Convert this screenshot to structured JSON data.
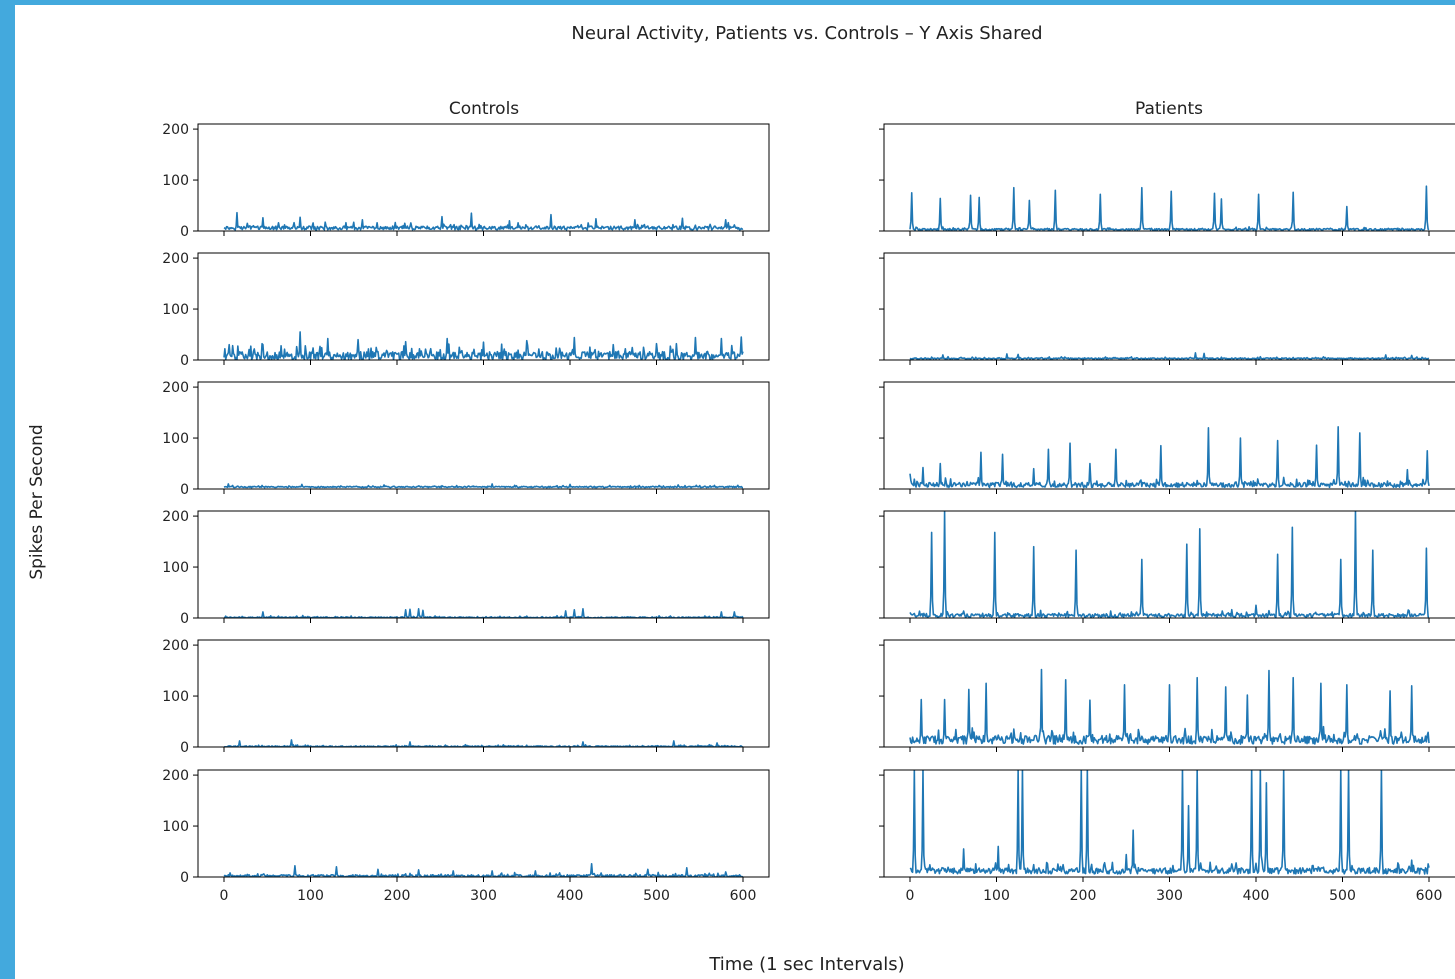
{
  "figure": {
    "title": "Neural Activity, Patients vs. Controls – Y Axis Shared",
    "xlabel": "Time (1 sec Intervals)",
    "ylabel": "Spikes Per Second"
  },
  "colors": {
    "line": "#1f77b4",
    "axes": "#000000",
    "background": "#ffffff"
  },
  "chart_data": {
    "type": "line",
    "layout": {
      "rows": 6,
      "columns": 2,
      "sharey": true
    },
    "columns": [
      {
        "title": "Controls",
        "key": "controls"
      },
      {
        "title": "Patients",
        "key": "patients"
      }
    ],
    "x_range": [
      0,
      600
    ],
    "x_step": 1,
    "ylim": [
      0,
      210
    ],
    "x_ticks": [
      0,
      100,
      200,
      300,
      400,
      500,
      600
    ],
    "y_ticks": [
      0,
      100,
      200
    ],
    "grid": false,
    "legend": "none",
    "series": [
      {
        "column": "controls",
        "row": 0,
        "baseline": 6,
        "noise": 6,
        "spikes": [
          [
            15,
            36
          ],
          [
            45,
            26
          ],
          [
            88,
            27
          ],
          [
            160,
            22
          ],
          [
            252,
            28
          ],
          [
            286,
            35
          ],
          [
            330,
            20
          ],
          [
            378,
            32
          ],
          [
            430,
            24
          ],
          [
            475,
            22
          ],
          [
            530,
            25
          ],
          [
            580,
            22
          ]
        ]
      },
      {
        "column": "controls",
        "row": 1,
        "baseline": 8,
        "noise": 14,
        "spikes": [
          [
            10,
            28
          ],
          [
            45,
            30
          ],
          [
            88,
            55
          ],
          [
            120,
            42
          ],
          [
            155,
            40
          ],
          [
            210,
            36
          ],
          [
            258,
            42
          ],
          [
            300,
            35
          ],
          [
            350,
            38
          ],
          [
            405,
            44
          ],
          [
            450,
            30
          ],
          [
            500,
            32
          ],
          [
            545,
            44
          ],
          [
            575,
            42
          ],
          [
            598,
            45
          ]
        ]
      },
      {
        "column": "controls",
        "row": 2,
        "baseline": 4,
        "noise": 2,
        "spikes": [
          [
            5,
            10
          ],
          [
            90,
            9
          ],
          [
            185,
            8
          ],
          [
            310,
            10
          ],
          [
            400,
            9
          ],
          [
            525,
            8
          ]
        ]
      },
      {
        "column": "controls",
        "row": 3,
        "baseline": 1,
        "noise": 2,
        "spikes": [
          [
            45,
            12
          ],
          [
            210,
            16
          ],
          [
            215,
            17
          ],
          [
            225,
            18
          ],
          [
            230,
            15
          ],
          [
            395,
            14
          ],
          [
            405,
            16
          ],
          [
            415,
            18
          ],
          [
            575,
            12
          ],
          [
            590,
            12
          ]
        ]
      },
      {
        "column": "controls",
        "row": 4,
        "baseline": 1,
        "noise": 2,
        "spikes": [
          [
            18,
            12
          ],
          [
            78,
            14
          ],
          [
            215,
            10
          ],
          [
            415,
            10
          ],
          [
            520,
            12
          ],
          [
            570,
            8
          ]
        ]
      },
      {
        "column": "controls",
        "row": 5,
        "baseline": 2,
        "noise": 4,
        "spikes": [
          [
            82,
            22
          ],
          [
            130,
            20
          ],
          [
            178,
            15
          ],
          [
            225,
            14
          ],
          [
            265,
            12
          ],
          [
            310,
            12
          ],
          [
            360,
            12
          ],
          [
            425,
            26
          ],
          [
            490,
            15
          ],
          [
            535,
            18
          ],
          [
            580,
            10
          ]
        ]
      },
      {
        "column": "patients",
        "row": 0,
        "baseline": 3,
        "noise": 3,
        "spikes": [
          [
            2,
            75
          ],
          [
            35,
            64
          ],
          [
            70,
            70
          ],
          [
            80,
            66
          ],
          [
            120,
            85
          ],
          [
            138,
            60
          ],
          [
            168,
            80
          ],
          [
            220,
            72
          ],
          [
            268,
            85
          ],
          [
            302,
            78
          ],
          [
            352,
            74
          ],
          [
            360,
            63
          ],
          [
            403,
            72
          ],
          [
            443,
            76
          ],
          [
            505,
            48
          ],
          [
            597,
            88
          ]
        ]
      },
      {
        "column": "patients",
        "row": 1,
        "baseline": 3,
        "noise": 2,
        "spikes": [
          [
            38,
            10
          ],
          [
            112,
            12
          ],
          [
            125,
            11
          ],
          [
            330,
            14
          ],
          [
            340,
            13
          ],
          [
            550,
            10
          ],
          [
            580,
            9
          ]
        ]
      },
      {
        "column": "patients",
        "row": 2,
        "baseline": 8,
        "noise": 8,
        "spikes": [
          [
            0,
            30
          ],
          [
            15,
            42
          ],
          [
            35,
            50
          ],
          [
            82,
            72
          ],
          [
            107,
            68
          ],
          [
            143,
            40
          ],
          [
            160,
            78
          ],
          [
            185,
            90
          ],
          [
            208,
            50
          ],
          [
            238,
            78
          ],
          [
            290,
            85
          ],
          [
            345,
            120
          ],
          [
            382,
            100
          ],
          [
            425,
            95
          ],
          [
            470,
            86
          ],
          [
            495,
            122
          ],
          [
            520,
            110
          ],
          [
            575,
            38
          ],
          [
            598,
            75
          ]
        ]
      },
      {
        "column": "patients",
        "row": 3,
        "baseline": 5,
        "noise": 6,
        "spikes": [
          [
            25,
            168
          ],
          [
            40,
            210
          ],
          [
            98,
            168
          ],
          [
            143,
            140
          ],
          [
            192,
            133
          ],
          [
            268,
            115
          ],
          [
            320,
            145
          ],
          [
            335,
            175
          ],
          [
            400,
            25
          ],
          [
            425,
            125
          ],
          [
            442,
            178
          ],
          [
            498,
            115
          ],
          [
            515,
            210
          ],
          [
            535,
            133
          ],
          [
            597,
            137
          ]
        ]
      },
      {
        "column": "patients",
        "row": 4,
        "baseline": 14,
        "noise": 14,
        "spikes": [
          [
            13,
            93
          ],
          [
            40,
            93
          ],
          [
            68,
            113
          ],
          [
            88,
            125
          ],
          [
            152,
            152
          ],
          [
            180,
            132
          ],
          [
            208,
            92
          ],
          [
            248,
            122
          ],
          [
            300,
            122
          ],
          [
            332,
            136
          ],
          [
            365,
            118
          ],
          [
            390,
            102
          ],
          [
            415,
            150
          ],
          [
            443,
            136
          ],
          [
            475,
            125
          ],
          [
            505,
            122
          ],
          [
            555,
            110
          ],
          [
            580,
            120
          ]
        ]
      },
      {
        "column": "patients",
        "row": 5,
        "baseline": 12,
        "noise": 10,
        "spikes": [
          [
            5,
            210
          ],
          [
            15,
            210
          ],
          [
            62,
            55
          ],
          [
            102,
            60
          ],
          [
            125,
            210
          ],
          [
            130,
            210
          ],
          [
            198,
            210
          ],
          [
            205,
            210
          ],
          [
            250,
            44
          ],
          [
            258,
            92
          ],
          [
            315,
            210
          ],
          [
            322,
            140
          ],
          [
            332,
            210
          ],
          [
            395,
            210
          ],
          [
            405,
            210
          ],
          [
            412,
            185
          ],
          [
            432,
            210
          ],
          [
            498,
            210
          ],
          [
            507,
            210
          ],
          [
            545,
            210
          ],
          [
            580,
            33
          ]
        ]
      }
    ]
  }
}
